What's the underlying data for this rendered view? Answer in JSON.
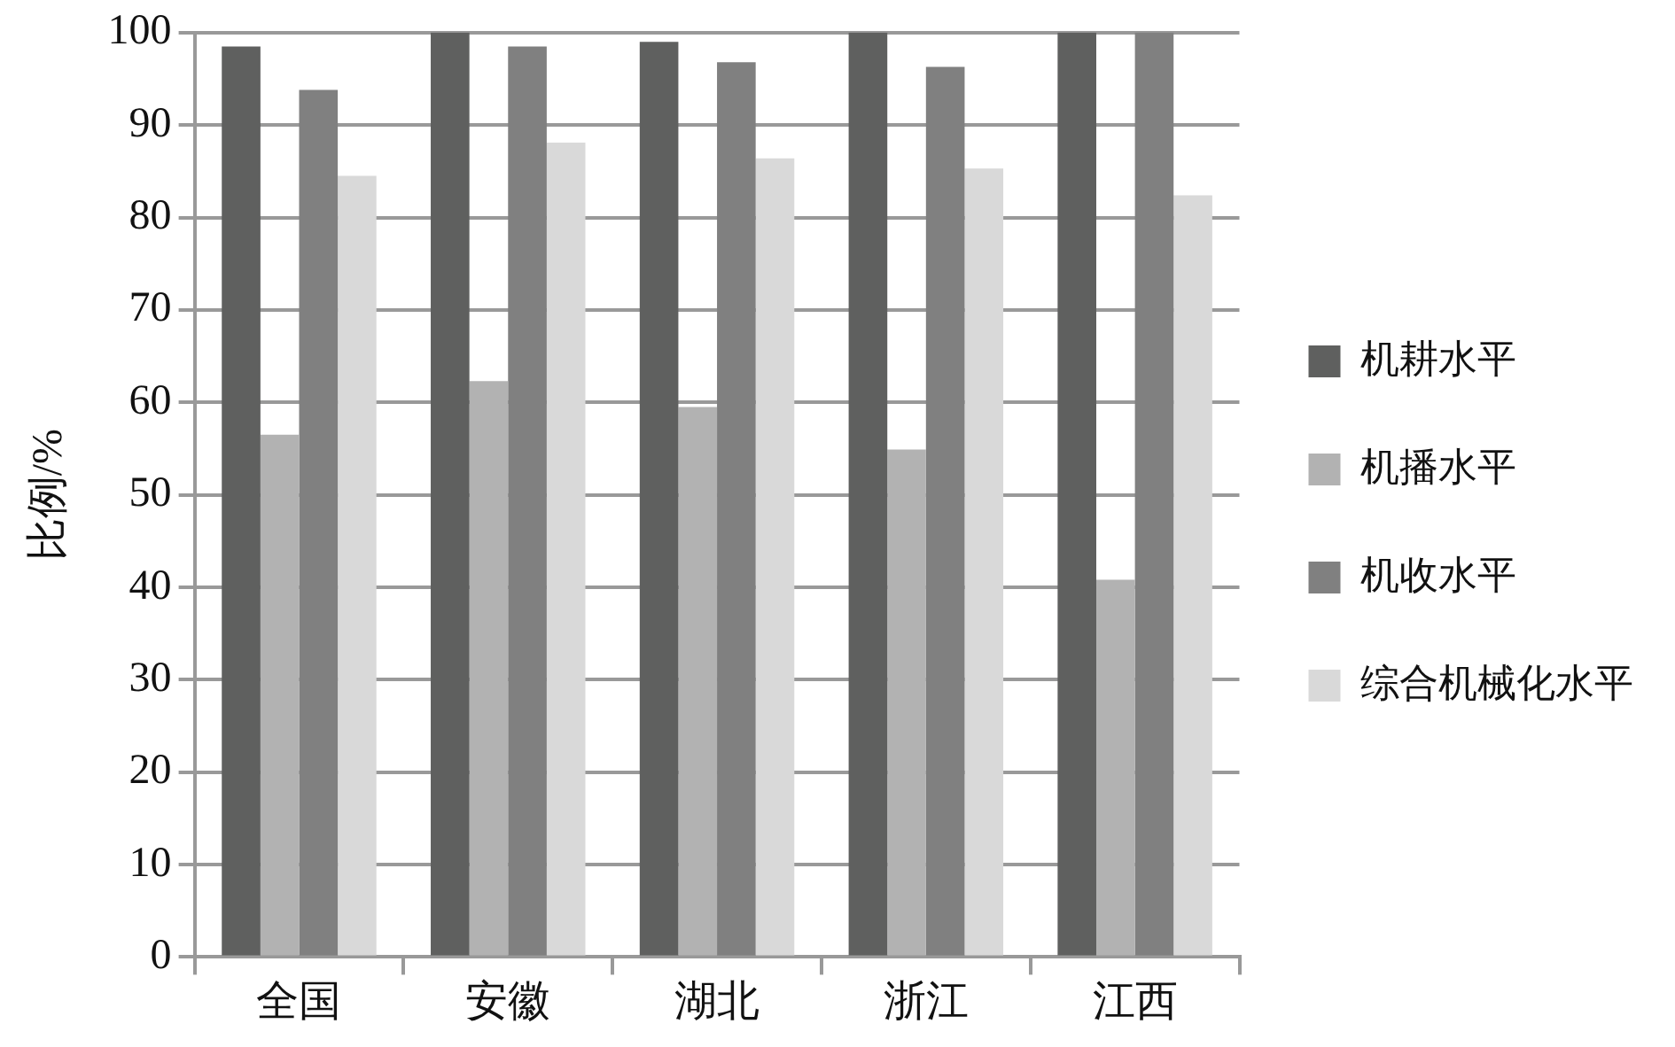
{
  "chart_data": {
    "type": "bar",
    "ylabel": "比例/%",
    "categories": [
      "全国",
      "安徽",
      "湖北",
      "浙江",
      "江西"
    ],
    "series": [
      {
        "name": "机耕水平",
        "color": "#5f605f",
        "values": [
          98.5,
          100,
          99,
          100,
          100
        ]
      },
      {
        "name": "机播水平",
        "color": "#b2b2b2",
        "values": [
          56.5,
          62.3,
          59.5,
          54.9,
          40.8
        ]
      },
      {
        "name": "机收水平",
        "color": "#808080",
        "values": [
          93.8,
          98.5,
          96.8,
          96.3,
          100
        ]
      },
      {
        "name": "综合机械化水平",
        "color": "#d9d9d9",
        "values": [
          84.5,
          88.1,
          86.4,
          85.3,
          82.4
        ]
      }
    ],
    "ylim": [
      0,
      100
    ],
    "yticks": [
      0,
      10,
      20,
      30,
      40,
      50,
      60,
      70,
      80,
      90,
      100
    ],
    "grid": "y",
    "legend": "right"
  }
}
